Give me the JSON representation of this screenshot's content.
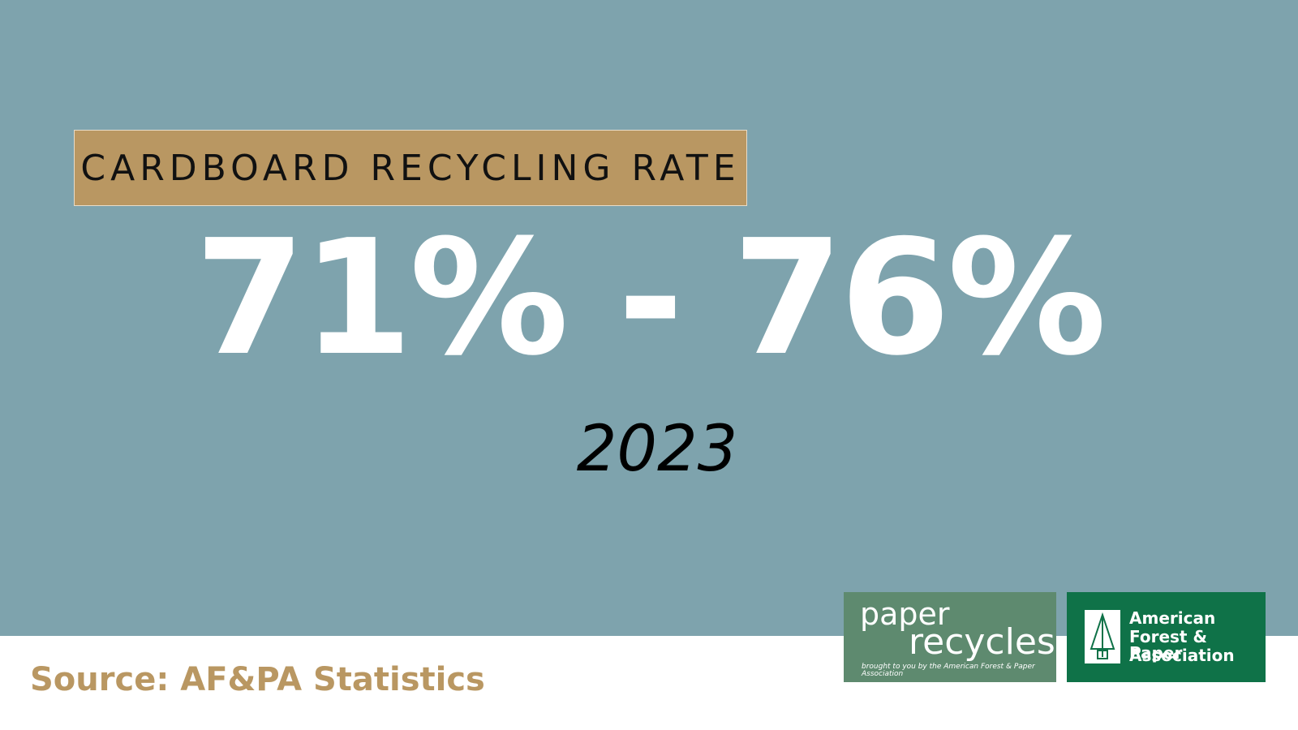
{
  "header": {
    "title": "CARDBOARD RECYCLING RATE"
  },
  "stat": {
    "value": "71% - 76%",
    "year": "2023"
  },
  "footer": {
    "source": "Source: AF&PA Statistics",
    "logos": [
      {
        "line1": "paper",
        "line2": "recycles",
        "tagline": "brought to you by the American Forest & Paper Association"
      },
      {
        "lines": [
          "American",
          "Forest & Paper",
          "Association"
        ]
      }
    ]
  }
}
